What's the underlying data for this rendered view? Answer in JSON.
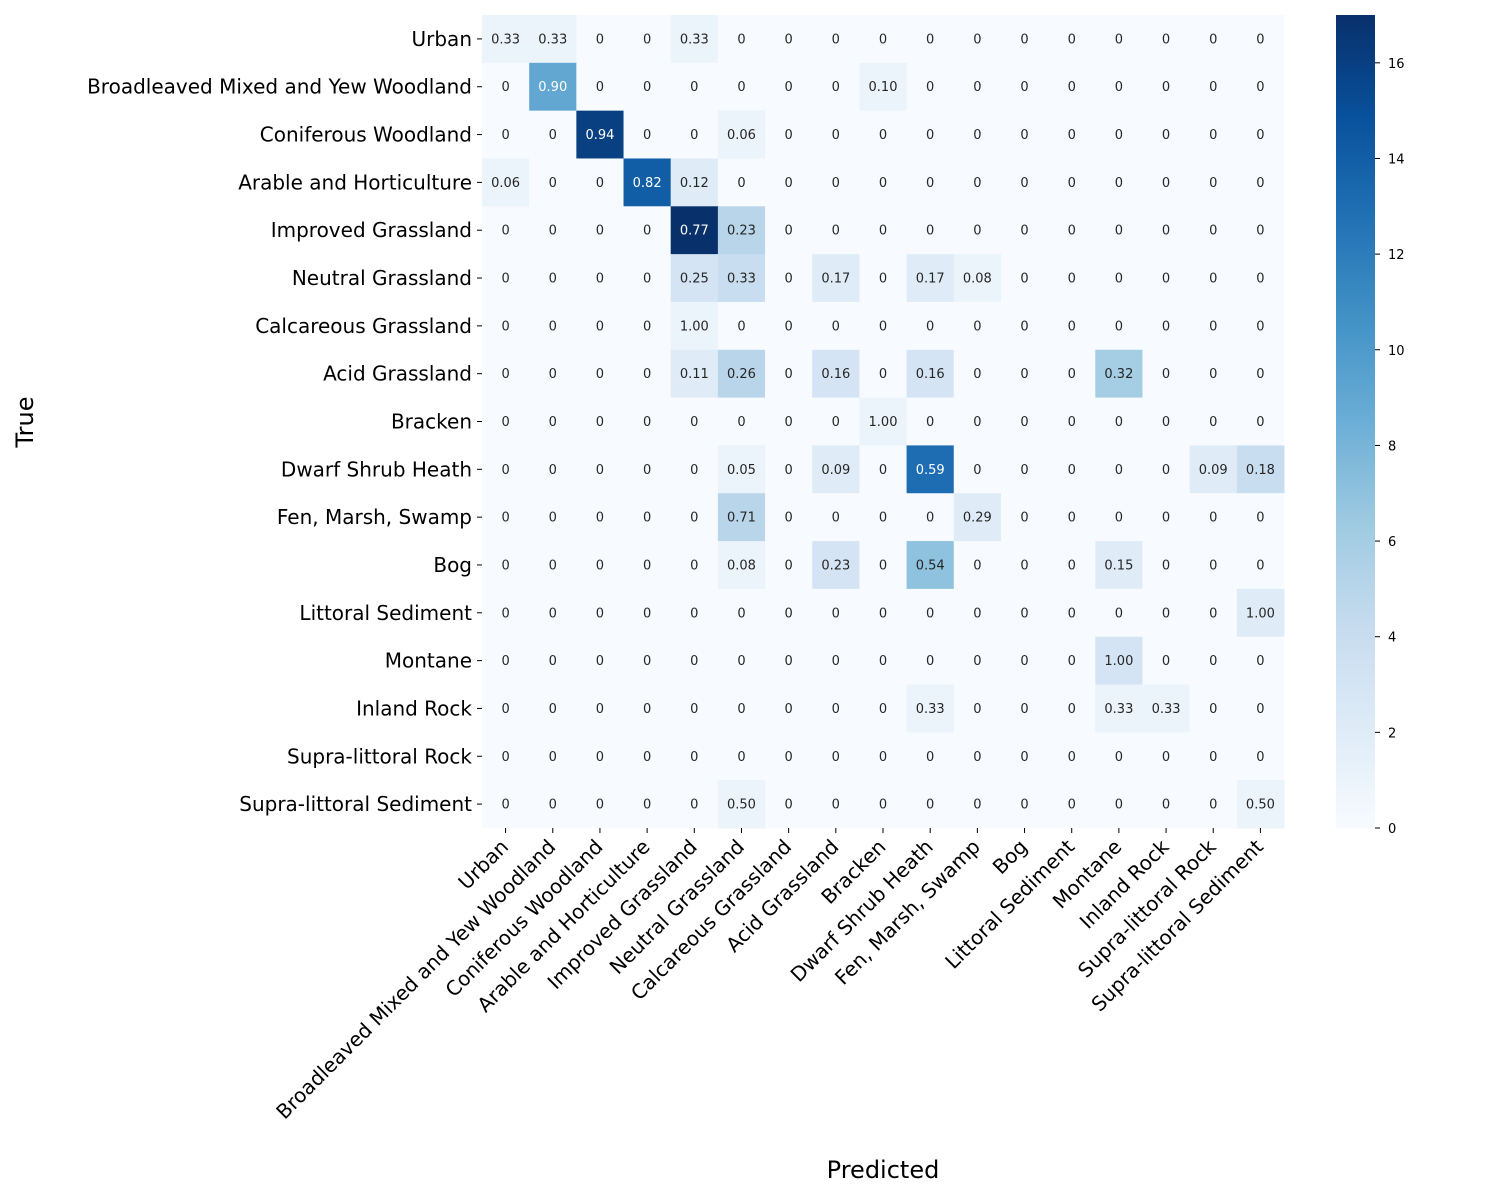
{
  "chart_data": {
    "type": "heatmap",
    "xlabel": "Predicted",
    "ylabel": "True",
    "categories": [
      "Urban",
      "Broadleaved Mixed and Yew Woodland",
      "Coniferous Woodland",
      "Arable and Horticulture",
      "Improved Grassland",
      "Neutral Grassland",
      "Calcareous Grassland",
      "Acid Grassland",
      "Bracken",
      "Dwarf Shrub Heath",
      "Fen, Marsh, Swamp",
      "Bog",
      "Littoral Sediment",
      "Montane",
      "Inland Rock",
      "Supra-littoral Rock",
      "Supra-littoral Sediment"
    ],
    "annotations": [
      [
        "0.33",
        "0.33",
        "0",
        "0",
        "0.33",
        "0",
        "0",
        "0",
        "0",
        "0",
        "0",
        "0",
        "0",
        "0",
        "0",
        "0",
        "0"
      ],
      [
        "0",
        "0.90",
        "0",
        "0",
        "0",
        "0",
        "0",
        "0",
        "0.10",
        "0",
        "0",
        "0",
        "0",
        "0",
        "0",
        "0",
        "0"
      ],
      [
        "0",
        "0",
        "0.94",
        "0",
        "0",
        "0.06",
        "0",
        "0",
        "0",
        "0",
        "0",
        "0",
        "0",
        "0",
        "0",
        "0",
        "0"
      ],
      [
        "0.06",
        "0",
        "0",
        "0.82",
        "0.12",
        "0",
        "0",
        "0",
        "0",
        "0",
        "0",
        "0",
        "0",
        "0",
        "0",
        "0",
        "0"
      ],
      [
        "0",
        "0",
        "0",
        "0",
        "0.77",
        "0.23",
        "0",
        "0",
        "0",
        "0",
        "0",
        "0",
        "0",
        "0",
        "0",
        "0",
        "0"
      ],
      [
        "0",
        "0",
        "0",
        "0",
        "0.25",
        "0.33",
        "0",
        "0.17",
        "0",
        "0.17",
        "0.08",
        "0",
        "0",
        "0",
        "0",
        "0",
        "0"
      ],
      [
        "0",
        "0",
        "0",
        "0",
        "1.00",
        "0",
        "0",
        "0",
        "0",
        "0",
        "0",
        "0",
        "0",
        "0",
        "0",
        "0",
        "0"
      ],
      [
        "0",
        "0",
        "0",
        "0",
        "0.11",
        "0.26",
        "0",
        "0.16",
        "0",
        "0.16",
        "0",
        "0",
        "0",
        "0.32",
        "0",
        "0",
        "0"
      ],
      [
        "0",
        "0",
        "0",
        "0",
        "0",
        "0",
        "0",
        "0",
        "1.00",
        "0",
        "0",
        "0",
        "0",
        "0",
        "0",
        "0",
        "0"
      ],
      [
        "0",
        "0",
        "0",
        "0",
        "0",
        "0.05",
        "0",
        "0.09",
        "0",
        "0.59",
        "0",
        "0",
        "0",
        "0",
        "0",
        "0.09",
        "0.18"
      ],
      [
        "0",
        "0",
        "0",
        "0",
        "0",
        "0.71",
        "0",
        "0",
        "0",
        "0",
        "0.29",
        "0",
        "0",
        "0",
        "0",
        "0",
        "0"
      ],
      [
        "0",
        "0",
        "0",
        "0",
        "0",
        "0.08",
        "0",
        "0.23",
        "0",
        "0.54",
        "0",
        "0",
        "0",
        "0.15",
        "0",
        "0",
        "0"
      ],
      [
        "0",
        "0",
        "0",
        "0",
        "0",
        "0",
        "0",
        "0",
        "0",
        "0",
        "0",
        "0",
        "0",
        "0",
        "0",
        "0",
        "1.00"
      ],
      [
        "0",
        "0",
        "0",
        "0",
        "0",
        "0",
        "0",
        "0",
        "0",
        "0",
        "0",
        "0",
        "0",
        "1.00",
        "0",
        "0",
        "0"
      ],
      [
        "0",
        "0",
        "0",
        "0",
        "0",
        "0",
        "0",
        "0",
        "0",
        "0.33",
        "0",
        "0",
        "0",
        "0.33",
        "0.33",
        "0",
        "0"
      ],
      [
        "0",
        "0",
        "0",
        "0",
        "0",
        "0",
        "0",
        "0",
        "0",
        "0",
        "0",
        "0",
        "0",
        "0",
        "0",
        "0",
        "0"
      ],
      [
        "0",
        "0",
        "0",
        "0",
        "0",
        "0.50",
        "0",
        "0",
        "0",
        "0",
        "0",
        "0",
        "0",
        "0",
        "0",
        "0",
        "0.50"
      ]
    ],
    "counts": [
      [
        1,
        1,
        0,
        0,
        1,
        0,
        0,
        0,
        0,
        0,
        0,
        0,
        0,
        0,
        0,
        0,
        0
      ],
      [
        0,
        9,
        0,
        0,
        0,
        0,
        0,
        0,
        1,
        0,
        0,
        0,
        0,
        0,
        0,
        0,
        0
      ],
      [
        0,
        0,
        16,
        0,
        0,
        1,
        0,
        0,
        0,
        0,
        0,
        0,
        0,
        0,
        0,
        0,
        0
      ],
      [
        1,
        0,
        0,
        14,
        2,
        0,
        0,
        0,
        0,
        0,
        0,
        0,
        0,
        0,
        0,
        0,
        0
      ],
      [
        0,
        0,
        0,
        0,
        17,
        5,
        0,
        0,
        0,
        0,
        0,
        0,
        0,
        0,
        0,
        0,
        0
      ],
      [
        0,
        0,
        0,
        0,
        3,
        4,
        0,
        2,
        0,
        2,
        1,
        0,
        0,
        0,
        0,
        0,
        0
      ],
      [
        0,
        0,
        0,
        0,
        1,
        0,
        0,
        0,
        0,
        0,
        0,
        0,
        0,
        0,
        0,
        0,
        0
      ],
      [
        0,
        0,
        0,
        0,
        2,
        5,
        0,
        3,
        0,
        3,
        0,
        0,
        0,
        6,
        0,
        0,
        0
      ],
      [
        0,
        0,
        0,
        0,
        0,
        0,
        0,
        0,
        1,
        0,
        0,
        0,
        0,
        0,
        0,
        0,
        0
      ],
      [
        0,
        0,
        0,
        0,
        0,
        1,
        0,
        2,
        0,
        13,
        0,
        0,
        0,
        0,
        0,
        2,
        4
      ],
      [
        0,
        0,
        0,
        0,
        0,
        5,
        0,
        0,
        0,
        0,
        2,
        0,
        0,
        0,
        0,
        0,
        0
      ],
      [
        0,
        0,
        0,
        0,
        0,
        1,
        0,
        3,
        0,
        7,
        0,
        0,
        0,
        2,
        0,
        0,
        0
      ],
      [
        0,
        0,
        0,
        0,
        0,
        0,
        0,
        0,
        0,
        0,
        0,
        0,
        0,
        0,
        0,
        0,
        2
      ],
      [
        0,
        0,
        0,
        0,
        0,
        0,
        0,
        0,
        0,
        0,
        0,
        0,
        0,
        3,
        0,
        0,
        0
      ],
      [
        0,
        0,
        0,
        0,
        0,
        0,
        0,
        0,
        0,
        1,
        0,
        0,
        0,
        1,
        1,
        0,
        0
      ],
      [
        0,
        0,
        0,
        0,
        0,
        0,
        0,
        0,
        0,
        0,
        0,
        0,
        0,
        0,
        0,
        0,
        0
      ],
      [
        0,
        0,
        0,
        0,
        0,
        1,
        0,
        0,
        0,
        0,
        0,
        0,
        0,
        0,
        0,
        0,
        1
      ]
    ],
    "colorbar": {
      "range": [
        0,
        17
      ],
      "ticks": [
        "0",
        "2",
        "4",
        "6",
        "8",
        "10",
        "12",
        "14",
        "16"
      ]
    },
    "colors": {
      "low": "#f7fbff",
      "high": "#08306b",
      "colormap": "Blues"
    }
  }
}
